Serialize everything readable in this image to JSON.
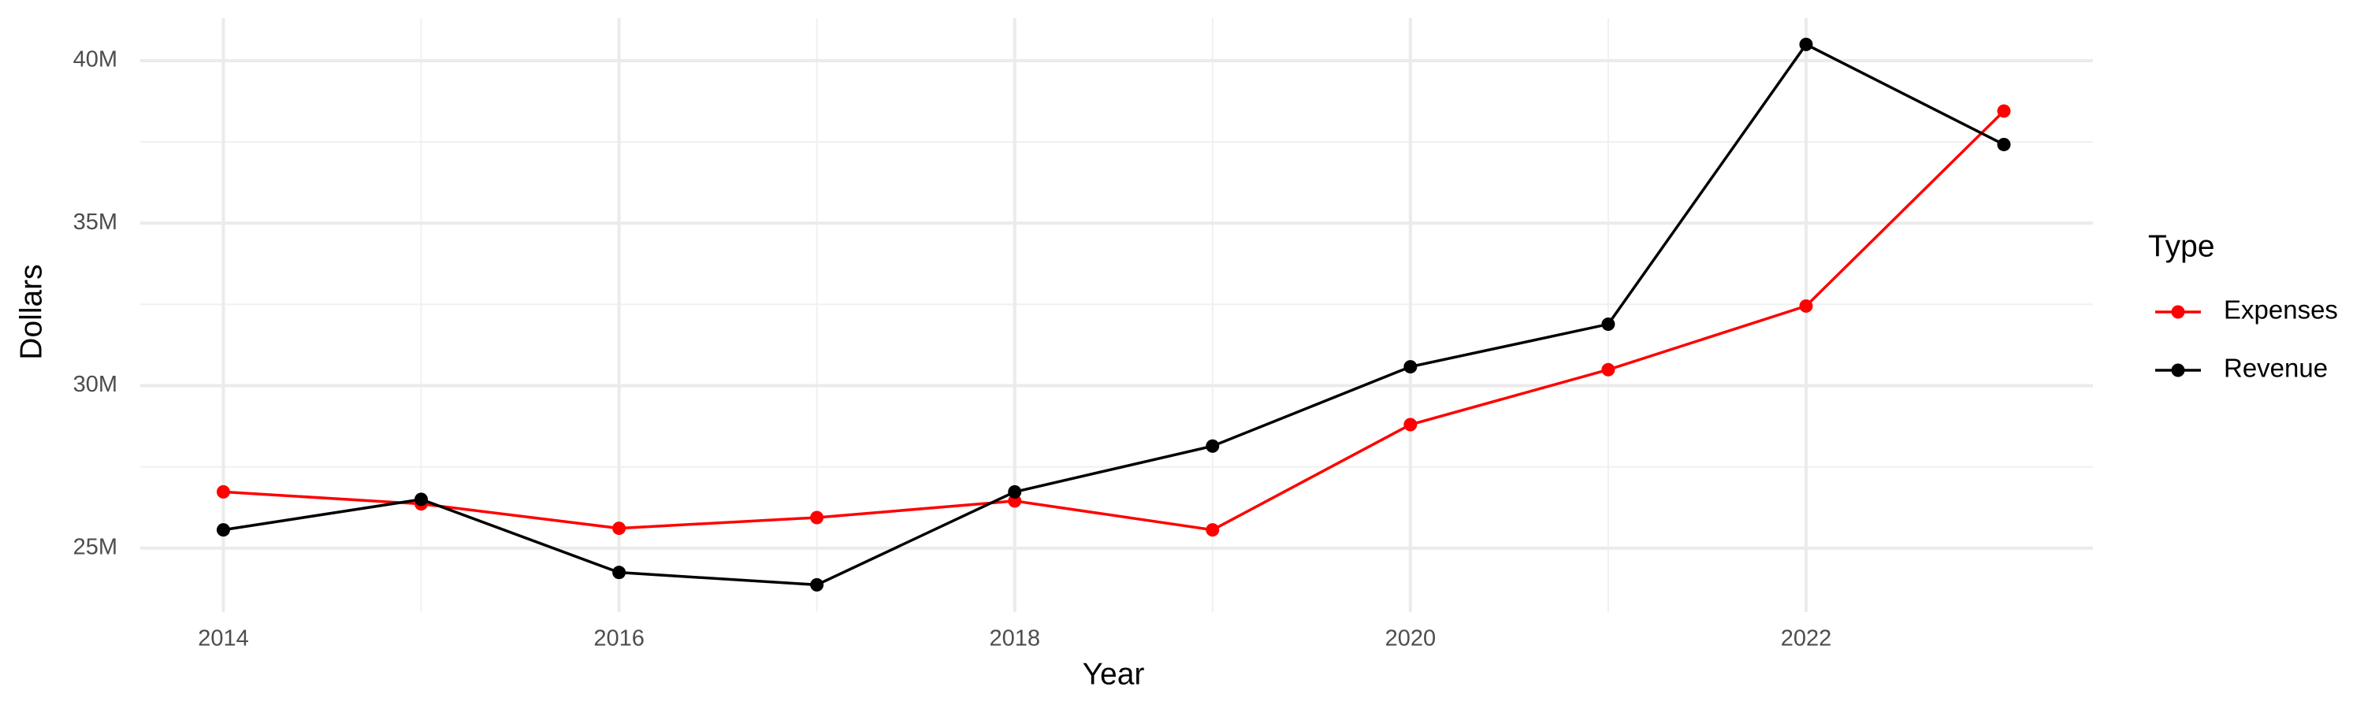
{
  "chart_data": {
    "type": "line",
    "x_label": "Year",
    "y_label": "Dollars",
    "legend_title": "Type",
    "x": [
      2014,
      2015,
      2016,
      2017,
      2018,
      2019,
      2020,
      2021,
      2022,
      2023
    ],
    "series": [
      {
        "name": "Expenses",
        "color": "#ff0000",
        "values": [
          26730000,
          26360000,
          25610000,
          25940000,
          26450000,
          25560000,
          28800000,
          30490000,
          32450000,
          38450000
        ]
      },
      {
        "name": "Revenue",
        "color": "#000000",
        "values": [
          25560000,
          26500000,
          24250000,
          23870000,
          26730000,
          28140000,
          30580000,
          31890000,
          40500000,
          37420000
        ]
      }
    ],
    "xlim": [
      2013.58,
      2023.45
    ],
    "xticks": [
      2014,
      2016,
      2018,
      2020,
      2022
    ],
    "ylim": [
      23030000,
      41310000
    ],
    "yticks": [
      {
        "value": 25000000,
        "label": "25M"
      },
      {
        "value": 30000000,
        "label": "30M"
      },
      {
        "value": 35000000,
        "label": "35M"
      },
      {
        "value": 40000000,
        "label": "40M"
      }
    ],
    "grid": true,
    "legend_position": "right"
  }
}
